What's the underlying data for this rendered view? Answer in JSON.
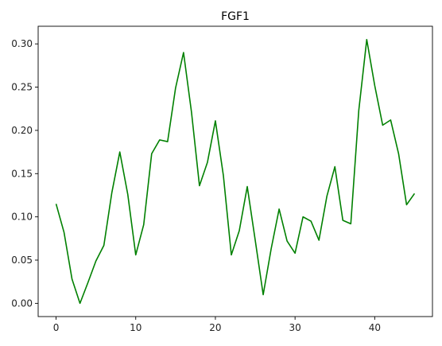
{
  "chart_data": {
    "type": "line",
    "title": "FGF1",
    "xlabel": "",
    "ylabel": "",
    "xlim": [
      -2.25,
      47.25
    ],
    "ylim": [
      -0.0153,
      0.3204
    ],
    "x_ticks": [
      0,
      10,
      20,
      30,
      40
    ],
    "y_ticks": [
      0.0,
      0.05,
      0.1,
      0.15,
      0.2,
      0.25,
      0.3
    ],
    "y_tick_labels": [
      "0.00",
      "0.05",
      "0.10",
      "0.15",
      "0.20",
      "0.25",
      "0.30"
    ],
    "grid": false,
    "legend": "none",
    "series": [
      {
        "color": "#008000",
        "x": [
          0,
          1,
          2,
          3,
          4,
          5,
          6,
          7,
          8,
          9,
          10,
          11,
          12,
          13,
          14,
          15,
          16,
          17,
          18,
          19,
          20,
          21,
          22,
          23,
          24,
          25,
          26,
          27,
          28,
          29,
          30,
          31,
          32,
          33,
          34,
          35,
          36,
          37,
          38,
          39,
          40,
          41,
          42,
          43,
          44,
          45
        ],
        "values": [
          0.115,
          0.082,
          0.028,
          0.0,
          0.024,
          0.049,
          0.067,
          0.128,
          0.175,
          0.126,
          0.056,
          0.091,
          0.173,
          0.189,
          0.187,
          0.249,
          0.29,
          0.221,
          0.136,
          0.163,
          0.211,
          0.148,
          0.056,
          0.084,
          0.135,
          0.073,
          0.01,
          0.063,
          0.109,
          0.072,
          0.058,
          0.1,
          0.095,
          0.073,
          0.124,
          0.158,
          0.096,
          0.092,
          0.223,
          0.305,
          0.252,
          0.206,
          0.212,
          0.173,
          0.114,
          0.127
        ]
      }
    ]
  }
}
